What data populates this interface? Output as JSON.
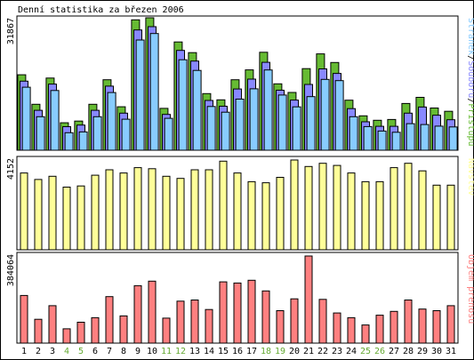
{
  "chart_data": {
    "type": "bar",
    "title": "Denní statistika za březen 2006",
    "categories": [
      "1",
      "2",
      "3",
      "4",
      "5",
      "6",
      "7",
      "8",
      "9",
      "10",
      "11",
      "12",
      "13",
      "14",
      "15",
      "16",
      "17",
      "18",
      "19",
      "20",
      "21",
      "22",
      "23",
      "24",
      "25",
      "26",
      "27",
      "28",
      "29",
      "30",
      "31"
    ],
    "weekend_days": [
      "4",
      "5",
      "11",
      "12",
      "18",
      "19",
      "25",
      "26"
    ],
    "colors": {
      "hits": "#66bb33",
      "files": "#8888ff",
      "pages": "#88ccff",
      "visits": "#ffff99",
      "kbytes": "#ff8080",
      "weekend": "#66aa33",
      "weekday": "#000000"
    },
    "panels": [
      {
        "id": "requests",
        "max_label": "31867",
        "ymax": 31867,
        "series": [
          {
            "name": "Přístupů",
            "key": "hits",
            "values": [
              18400,
              11200,
              17600,
              6700,
              7100,
              11200,
              17200,
              10600,
              31800,
              32300,
              10200,
              26400,
              23800,
              13800,
              12300,
              17200,
              19600,
              23900,
              16200,
              14100,
              19900,
              23500,
              21400,
              12200,
              8400,
              7300,
              7500,
              11400,
              12900,
              10300,
              9500
            ]
          },
          {
            "name": "Souborů",
            "key": "files",
            "values": [
              17400,
              10300,
              16700,
              6300,
              6700,
              10300,
              16200,
              9600,
              29900,
              30700,
              9300,
              24900,
              22300,
              12700,
              11300,
              15500,
              17900,
              22000,
              15200,
              12800,
              16600,
              20400,
              19300,
              10700,
              7500,
              6400,
              6400,
              9600,
              11100,
              9100,
              8000
            ]
          },
          {
            "name": "Stránek",
            "key": "pages",
            "values": [
              16500,
              9300,
              15700,
              5400,
              5600,
              9300,
              15200,
              8700,
              28000,
              29600,
              8900,
              23200,
              20600,
              11800,
              10400,
              13600,
              16100,
              20700,
              14600,
              11700,
              14200,
              18400,
              18100,
              9300,
              6900,
              5800,
              5500,
              7600,
              7400,
              7000,
              6800
            ]
          }
        ]
      },
      {
        "id": "visits",
        "max_label": "4152",
        "ymax": 4152,
        "series": [
          {
            "name": "Návštěv",
            "key": "visits",
            "values": [
              3550,
              3250,
              3400,
              2900,
              2950,
              3450,
              3700,
              3550,
              3800,
              3750,
              3400,
              3300,
              3700,
              3700,
              4100,
              3550,
              3150,
              3100,
              3350,
              4152,
              3850,
              4000,
              3900,
              3550,
              3150,
              3150,
              3800,
              4000,
              3650,
              2990,
              2990
            ]
          }
        ]
      },
      {
        "id": "kbytes",
        "max_label": "384064",
        "ymax": 384064,
        "series": [
          {
            "name": "Objem přenosů",
            "key": "kbytes",
            "values": [
              210000,
              105000,
              165000,
              63000,
              92000,
              112000,
              205000,
              120000,
              253000,
              273000,
              110000,
              185000,
              190000,
              148000,
              270000,
              265000,
              277000,
              230000,
              143000,
              195000,
              384064,
              193000,
              133000,
              112000,
              80000,
              123000,
              140000,
              190000,
              150000,
              143000,
              165000
            ]
          }
        ]
      }
    ]
  }
}
